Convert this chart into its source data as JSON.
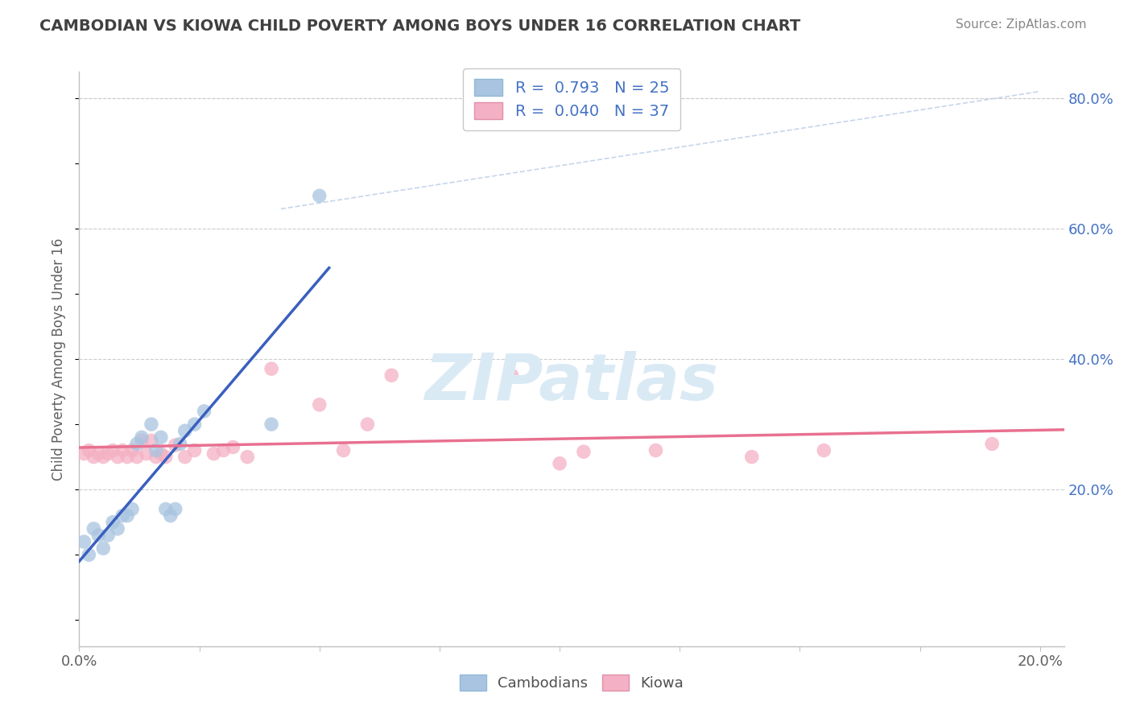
{
  "title": "CAMBODIAN VS KIOWA CHILD POVERTY AMONG BOYS UNDER 16 CORRELATION CHART",
  "source": "Source: ZipAtlas.com",
  "ylabel": "Child Poverty Among Boys Under 16",
  "xlim": [
    0.0,
    0.205
  ],
  "ylim": [
    -0.04,
    0.84
  ],
  "xticks": [
    0.0,
    0.025,
    0.05,
    0.075,
    0.1,
    0.125,
    0.15,
    0.175,
    0.2
  ],
  "xtick_labels": [
    "0.0%",
    "",
    "",
    "",
    "",
    "",
    "",
    "",
    "20.0%"
  ],
  "yticks_right": [
    0.2,
    0.4,
    0.6,
    0.8
  ],
  "ytick_labels_right": [
    "20.0%",
    "40.0%",
    "60.0%",
    "80.0%"
  ],
  "cambodian_R": 0.793,
  "cambodian_N": 25,
  "kiowa_R": 0.04,
  "kiowa_N": 37,
  "cambodian_color": "#a8c4e0",
  "kiowa_color": "#f4b0c4",
  "cambodian_line_color": "#3a5fbf",
  "kiowa_line_color": "#e87090",
  "legend_text_color": "#4472c4",
  "watermark": "ZIPatlas",
  "watermark_color": "#daeaf5",
  "title_color": "#404040",
  "background_color": "#ffffff",
  "grid_color": "#cccccc",
  "ref_line_color": "#b8cce4",
  "cambodian_x": [
    0.001,
    0.002,
    0.003,
    0.004,
    0.005,
    0.006,
    0.007,
    0.008,
    0.009,
    0.01,
    0.011,
    0.012,
    0.013,
    0.015,
    0.016,
    0.017,
    0.018,
    0.019,
    0.02,
    0.021,
    0.022,
    0.024,
    0.026,
    0.04,
    0.05
  ],
  "cambodian_y": [
    0.12,
    0.1,
    0.14,
    0.13,
    0.11,
    0.13,
    0.15,
    0.14,
    0.16,
    0.16,
    0.17,
    0.27,
    0.28,
    0.3,
    0.26,
    0.28,
    0.17,
    0.16,
    0.17,
    0.27,
    0.29,
    0.3,
    0.32,
    0.3,
    0.65
  ],
  "kiowa_x": [
    0.001,
    0.002,
    0.003,
    0.004,
    0.005,
    0.006,
    0.007,
    0.008,
    0.009,
    0.01,
    0.011,
    0.012,
    0.013,
    0.014,
    0.015,
    0.016,
    0.017,
    0.018,
    0.02,
    0.022,
    0.024,
    0.028,
    0.03,
    0.032,
    0.035,
    0.04,
    0.05,
    0.055,
    0.06,
    0.065,
    0.09,
    0.1,
    0.105,
    0.12,
    0.14,
    0.155,
    0.19
  ],
  "kiowa_y": [
    0.255,
    0.26,
    0.25,
    0.255,
    0.25,
    0.255,
    0.26,
    0.25,
    0.26,
    0.25,
    0.26,
    0.25,
    0.275,
    0.255,
    0.275,
    0.25,
    0.255,
    0.25,
    0.268,
    0.25,
    0.26,
    0.255,
    0.26,
    0.265,
    0.25,
    0.385,
    0.33,
    0.26,
    0.3,
    0.375,
    0.375,
    0.24,
    0.258,
    0.26,
    0.25,
    0.26,
    0.27
  ]
}
